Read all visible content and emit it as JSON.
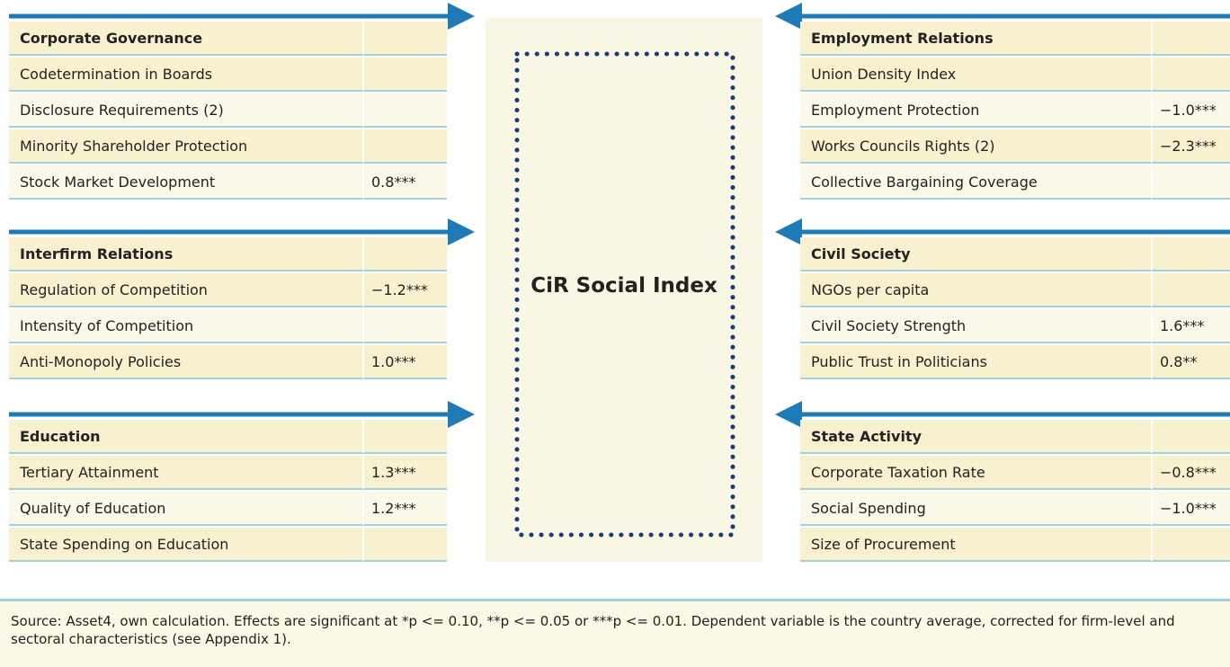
{
  "center_label": "CiR Social Index",
  "left_groups": [
    {
      "title": "Corporate Governance",
      "rows": [
        {
          "label": "Codetermination in Boards"
        },
        {
          "label": "Disclosure Requirements (2)"
        },
        {
          "label": "Minority Shareholder Protection"
        },
        {
          "label": "Stock Market Development",
          "value": "0.8***"
        }
      ]
    },
    {
      "title": "Interfirm Relations",
      "rows": [
        {
          "label": "Regulation of Competition",
          "value": "−1.2***"
        },
        {
          "label": "Intensity of Competition"
        },
        {
          "label": "Anti-Monopoly Policies",
          "value": "1.0***"
        }
      ]
    },
    {
      "title": "Education",
      "rows": [
        {
          "label": "Tertiary Attainment",
          "value": "1.3***"
        },
        {
          "label": "Quality of Education",
          "value": "1.2***"
        },
        {
          "label": "State Spending on Education"
        }
      ]
    }
  ],
  "right_groups": [
    {
      "title": "Employment Relations",
      "rows": [
        {
          "label": "Union Density Index"
        },
        {
          "label": "Employment Protection",
          "value": "−1.0***"
        },
        {
          "label": "Works Councils Rights (2)",
          "value": "−2.3***"
        },
        {
          "label": "Collective Bargaining Coverage"
        }
      ]
    },
    {
      "title": "Civil Society",
      "rows": [
        {
          "label": "NGOs per capita"
        },
        {
          "label": "Civil Society Strength",
          "value": "1.6***"
        },
        {
          "label": "Public Trust in Politicians",
          "value": "0.8**"
        }
      ]
    },
    {
      "title": "State Activity",
      "rows": [
        {
          "label": "Corporate Taxation Rate",
          "value": "−0.8***"
        },
        {
          "label": "Social Spending",
          "value": "−1.0***"
        },
        {
          "label": "Size of Procurement"
        }
      ]
    }
  ],
  "source": "Source: Asset4, own calculation. Effects are significant at *p <= 0.10, **p <= 0.05 or ***p <= 0.01. Dependent variable is the country average, corrected for firm-level and sectoral characteristics (see Appendix 1)."
}
